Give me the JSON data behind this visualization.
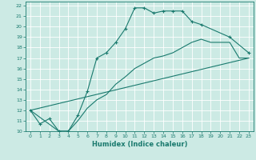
{
  "xlabel": "Humidex (Indice chaleur)",
  "bg_color": "#cceae4",
  "line_color": "#1a7a6e",
  "grid_color": "#ffffff",
  "xlim": [
    -0.5,
    23.5
  ],
  "ylim": [
    10,
    22.4
  ],
  "xticks": [
    0,
    1,
    2,
    3,
    4,
    5,
    6,
    7,
    8,
    9,
    10,
    11,
    12,
    13,
    14,
    15,
    16,
    17,
    18,
    19,
    20,
    21,
    22,
    23
  ],
  "yticks": [
    10,
    11,
    12,
    13,
    14,
    15,
    16,
    17,
    18,
    19,
    20,
    21,
    22
  ],
  "curve1_x": [
    0,
    1,
    2,
    3,
    4,
    5,
    6,
    7,
    8,
    9,
    10,
    11,
    12,
    13,
    14,
    15,
    16,
    17,
    18,
    21,
    23
  ],
  "curve1_y": [
    12,
    10.7,
    11.2,
    10.0,
    10.0,
    11.5,
    13.8,
    17.0,
    17.5,
    18.5,
    19.8,
    21.8,
    21.8,
    21.3,
    21.5,
    21.5,
    21.5,
    20.5,
    20.2,
    19.0,
    17.5
  ],
  "curve2_x": [
    0,
    23
  ],
  "curve2_y": [
    12,
    17.0
  ],
  "curve3_x": [
    0,
    3,
    4,
    5,
    6,
    7,
    8,
    9,
    10,
    11,
    12,
    13,
    14,
    15,
    16,
    17,
    18,
    19,
    20,
    21,
    22,
    23
  ],
  "curve3_y": [
    12,
    10.0,
    10.0,
    11.0,
    12.2,
    13.0,
    13.5,
    14.5,
    15.2,
    16.0,
    16.5,
    17.0,
    17.2,
    17.5,
    18.0,
    18.5,
    18.8,
    18.5,
    18.5,
    18.5,
    17.0,
    17.0
  ]
}
